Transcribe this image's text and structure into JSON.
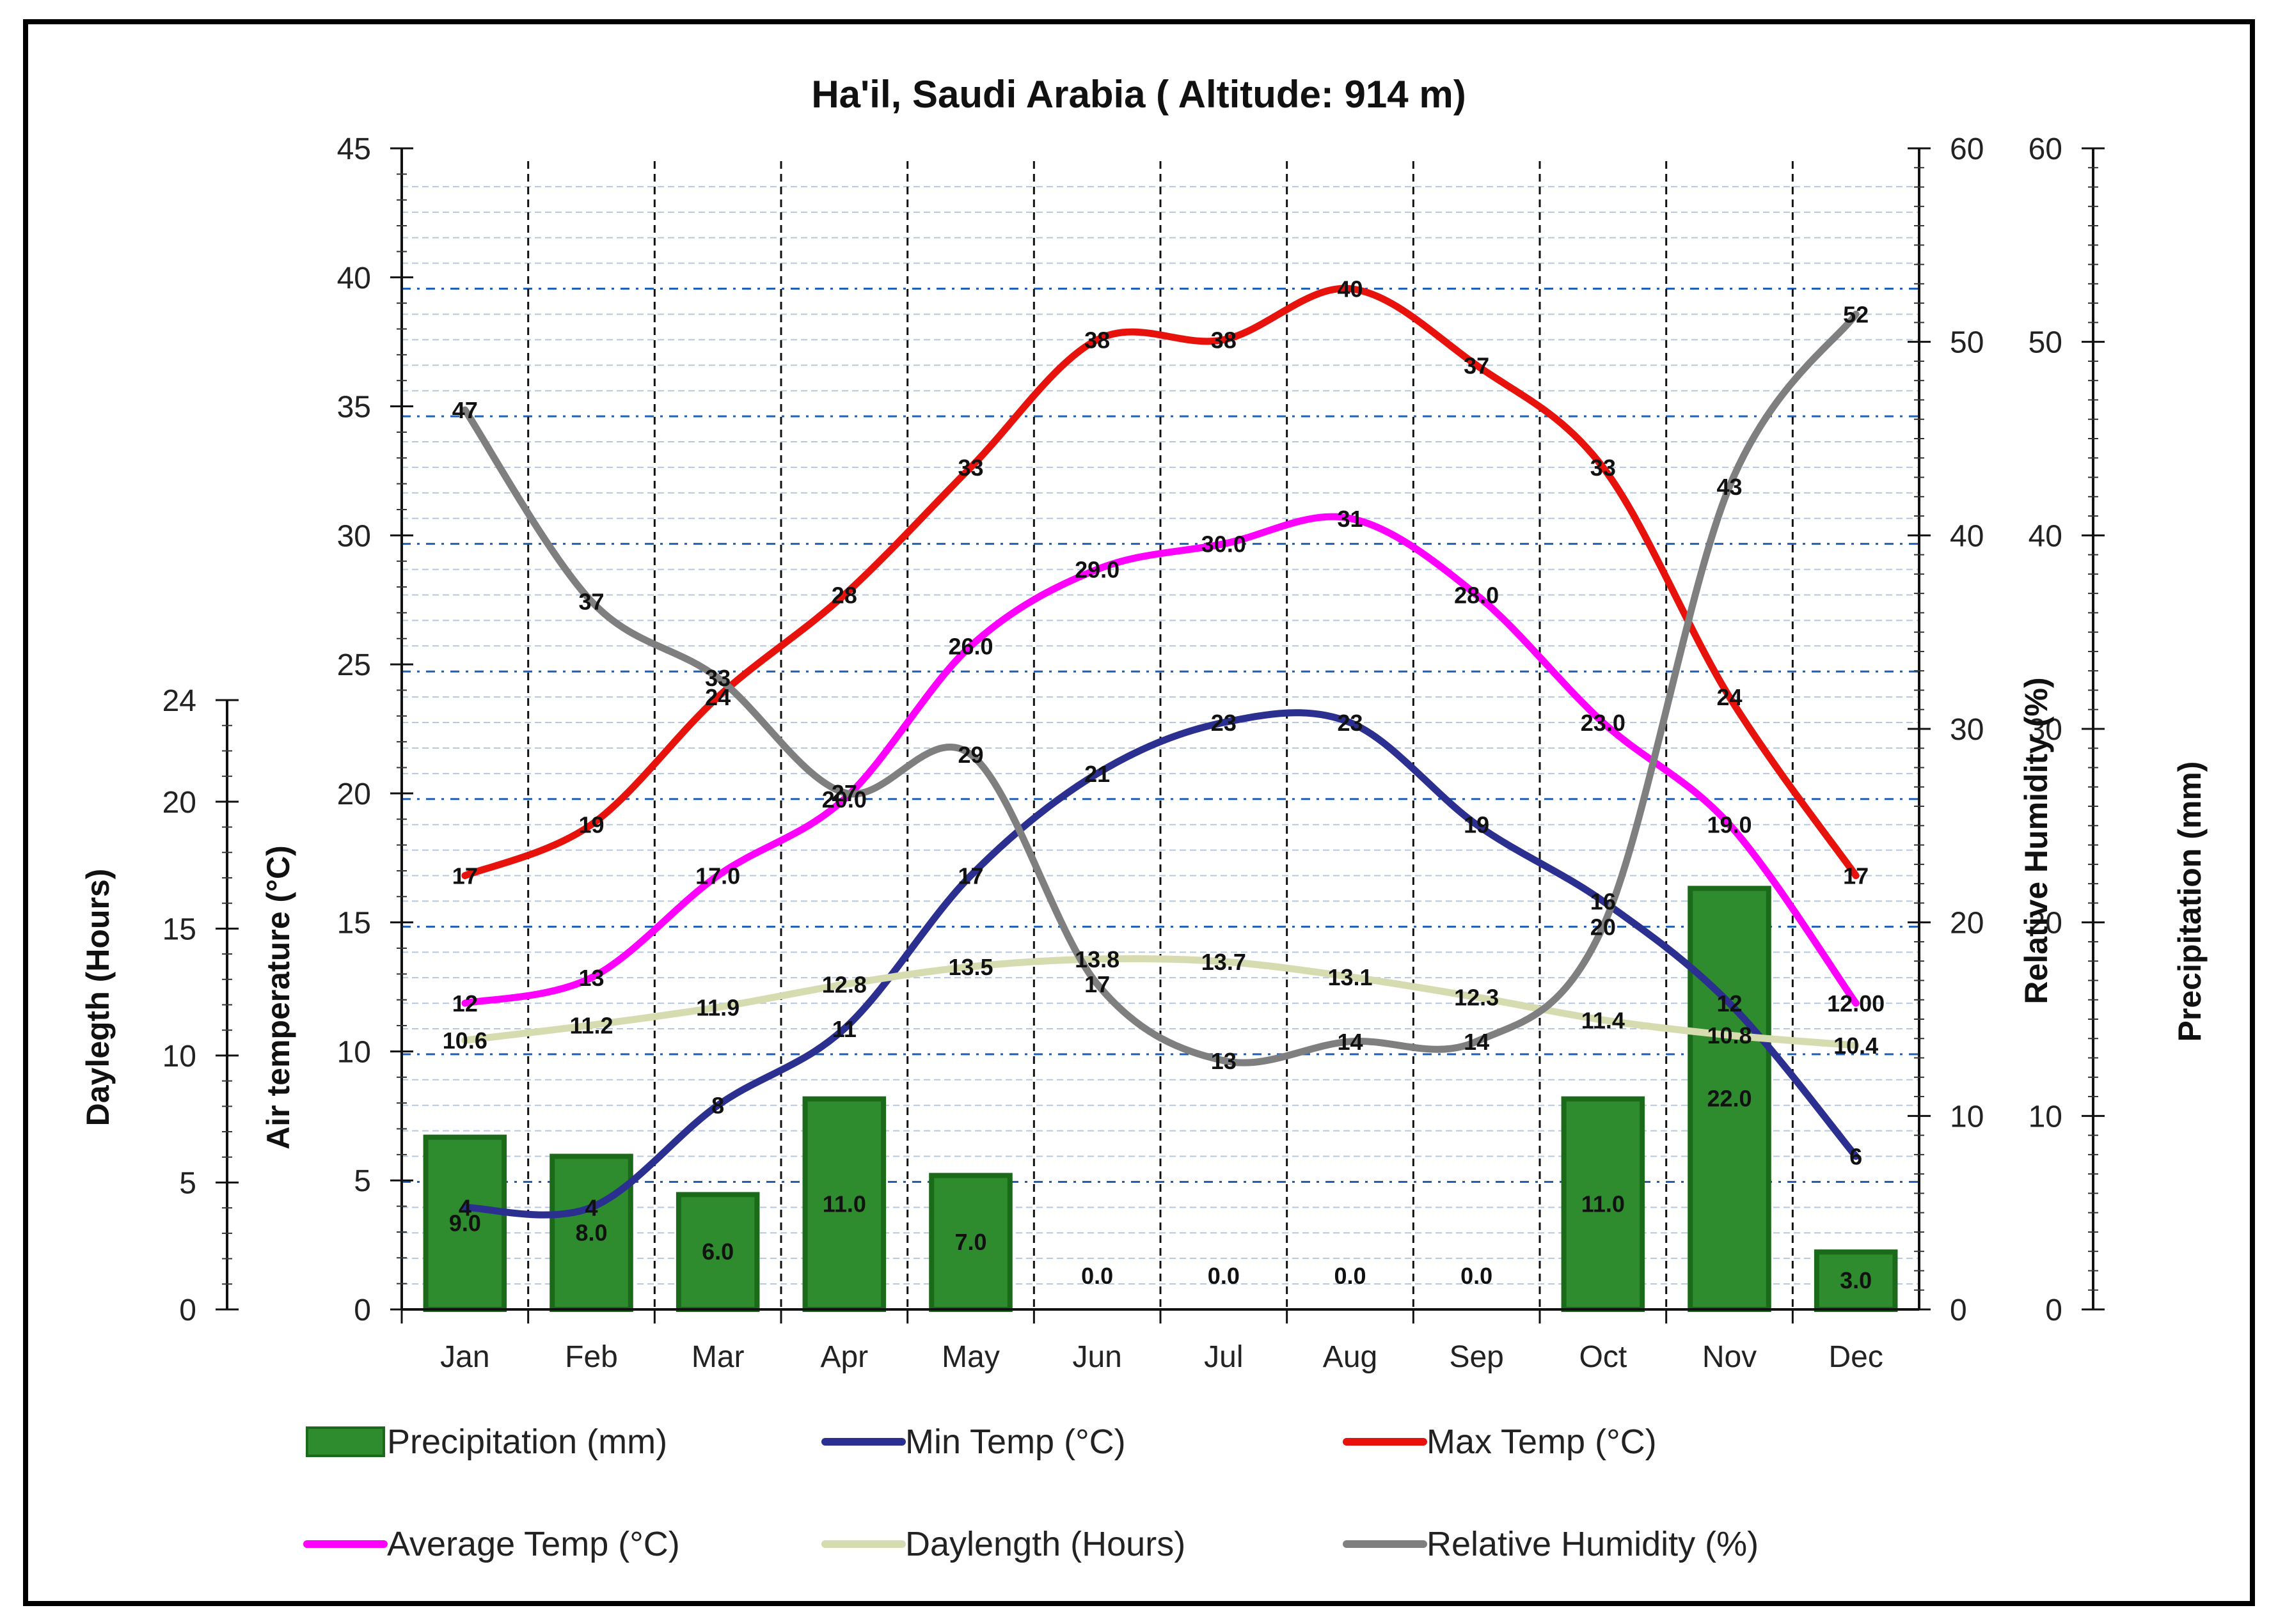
{
  "chart_data": {
    "type": "combo",
    "title": "Ha'il, Saudi Arabia ( Altitude: 914 m)",
    "categories": [
      "Jan",
      "Feb",
      "Mar",
      "Apr",
      "May",
      "Jun",
      "Jul",
      "Aug",
      "Sep",
      "Oct",
      "Nov",
      "Dec"
    ],
    "axes": {
      "daylength": {
        "label": "Daylegth (Hours)",
        "range": [
          0,
          24
        ],
        "ticks": [
          "0",
          "5",
          "10",
          "15",
          "20",
          "24"
        ]
      },
      "temperature": {
        "label": "Air temperature (°C)",
        "range": [
          0,
          45
        ],
        "ticks": [
          "0",
          "5",
          "10",
          "15",
          "20",
          "25",
          "30",
          "35",
          "40",
          "45"
        ]
      },
      "humidity": {
        "label": "Relative Humidity (%)",
        "range": [
          0,
          60
        ],
        "ticks": [
          "0",
          "10",
          "20",
          "30",
          "40",
          "50",
          "60"
        ]
      },
      "precipitation": {
        "label": "Precipitation (mm)",
        "range": [
          0,
          60
        ],
        "ticks": [
          "0",
          "10",
          "20",
          "30",
          "40",
          "50",
          "60"
        ]
      }
    },
    "series": [
      {
        "name": "Precipitation (mm)",
        "kind": "bar",
        "axis": "precipitation",
        "color": "#2e8b2e",
        "values": [
          9.0,
          8.0,
          6.0,
          11.0,
          7.0,
          0.0,
          0.0,
          0.0,
          0.0,
          11.0,
          22.0,
          3.0
        ],
        "labels": [
          "9.0",
          "8.0",
          "6.0",
          "11.0",
          "7.0",
          "0.0",
          "0.0",
          "0.0",
          "0.0",
          "11.0",
          "22.0",
          "3.0"
        ]
      },
      {
        "name": "Min Temp (°C)",
        "kind": "line",
        "axis": "temperature",
        "color": "#2b2f8f",
        "values": [
          4,
          4,
          8,
          11,
          17,
          21,
          23,
          23,
          19,
          16,
          12,
          6
        ],
        "labels": [
          "4",
          "4",
          "8",
          "11",
          "17",
          "21",
          "23",
          "23",
          "19",
          "16",
          "12",
          "6"
        ]
      },
      {
        "name": "Max Temp (°C)",
        "kind": "line",
        "axis": "temperature",
        "color": "#e8120c",
        "values": [
          17,
          19,
          24,
          28,
          33,
          38,
          38,
          40,
          37,
          33,
          24,
          17
        ],
        "labels": [
          "17",
          "19",
          "24",
          "28",
          "33",
          "38",
          "38",
          "40",
          "37",
          "33",
          "24",
          "17"
        ]
      },
      {
        "name": "Average Temp (°C)",
        "kind": "line",
        "axis": "temperature",
        "color": "#ff00ff",
        "values": [
          12,
          13,
          17.0,
          20.0,
          26.0,
          29.0,
          30.0,
          31,
          28.0,
          23.0,
          19.0,
          12.0
        ],
        "labels": [
          "12",
          "13",
          "17.0",
          "20.0",
          "26.0",
          "29.0",
          "30.0",
          "31",
          "28.0",
          "23.0",
          "19.0",
          "12.00"
        ]
      },
      {
        "name": "Daylength (Hours)",
        "kind": "line",
        "axis": "daylength",
        "color": "#d6dcb0",
        "values": [
          10.6,
          11.2,
          11.9,
          12.8,
          13.5,
          13.8,
          13.7,
          13.1,
          12.3,
          11.4,
          10.8,
          10.4
        ],
        "labels": [
          "10.6",
          "11.2",
          "11.9",
          "12.8",
          "13.5",
          "13.8",
          "13.7",
          "13.1",
          "12.3",
          "11.4",
          "10.8",
          "10.4"
        ]
      },
      {
        "name": "Relative Humidity (%)",
        "kind": "line",
        "axis": "humidity",
        "color": "#7f7f7f",
        "values": [
          47,
          37,
          33,
          27,
          29,
          17,
          13,
          14,
          14,
          20,
          43,
          52
        ],
        "labels": [
          "47",
          "37",
          "33",
          "27",
          "29",
          "17",
          "13",
          "14",
          "14",
          "20",
          "43",
          "52"
        ]
      }
    ],
    "legend": [
      "Precipitation (mm)",
      "Min Temp (°C)",
      "Max Temp (°C)",
      "Average Temp (°C)",
      "Daylength (Hours)",
      "Relative Humidity (%)"
    ],
    "legend_position": "bottom",
    "grid": true
  }
}
